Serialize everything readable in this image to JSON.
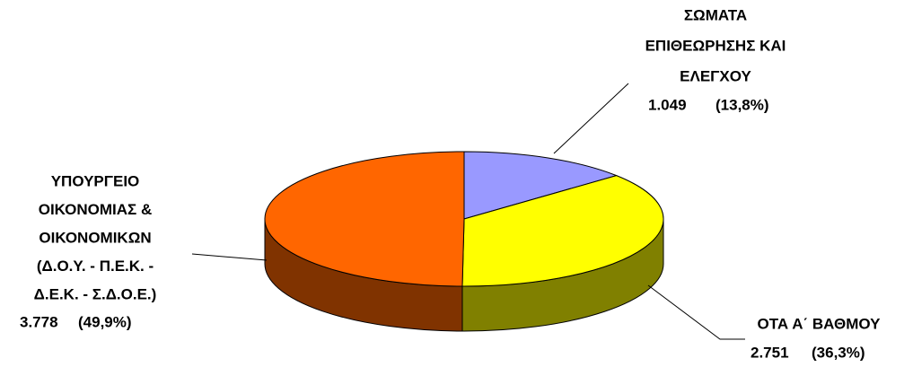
{
  "chart_data": {
    "type": "pie3d",
    "categories": [
      [
        "ΣΩΜΑΤΑ",
        "ΕΠΙΘΕΩΡΗΣΗΣ ΚΑΙ",
        "ΕΛΕΓΧΟΥ"
      ],
      [
        "ΟΤΑ Α΄ ΒΑΘΜΟΥ"
      ],
      [
        "ΥΠΟΥΡΓΕΙΟ",
        "ΟΙΚΟΝΟΜΙΑΣ &",
        "ΟΙΚΟΝΟΜΙΚΩΝ",
        "(Δ.Ο.Υ. - Π.Ε.Κ. -",
        "Δ.Ε.Κ. - Σ.Δ.Ο.Ε.)"
      ]
    ],
    "values": [
      1049,
      2751,
      3778
    ],
    "value_labels": [
      "1.049",
      "2.751",
      "3.778"
    ],
    "share_labels": [
      "(13,8%)",
      "(36,3%)",
      "(49,9%)"
    ],
    "colors": [
      "#9999ff",
      "#ffff00",
      "#ff6600"
    ],
    "side_colors": [
      "#4d4d80",
      "#808000",
      "#803300"
    ]
  }
}
